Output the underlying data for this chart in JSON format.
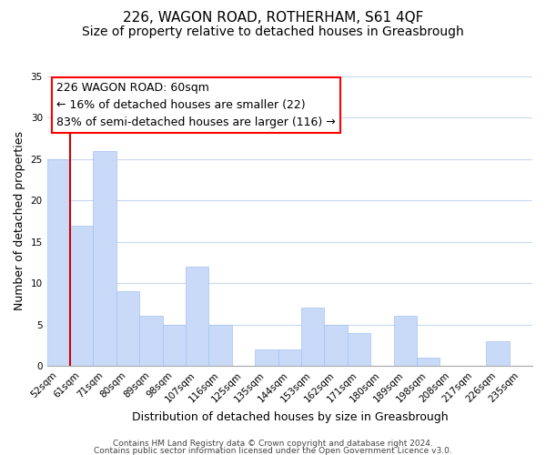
{
  "title": "226, WAGON ROAD, ROTHERHAM, S61 4QF",
  "subtitle": "Size of property relative to detached houses in Greasbrough",
  "xlabel": "Distribution of detached houses by size in Greasbrough",
  "ylabel": "Number of detached properties",
  "bar_labels": [
    "52sqm",
    "61sqm",
    "71sqm",
    "80sqm",
    "89sqm",
    "98sqm",
    "107sqm",
    "116sqm",
    "125sqm",
    "135sqm",
    "144sqm",
    "153sqm",
    "162sqm",
    "171sqm",
    "180sqm",
    "189sqm",
    "198sqm",
    "208sqm",
    "217sqm",
    "226sqm",
    "235sqm"
  ],
  "bar_values": [
    25,
    17,
    26,
    9,
    6,
    5,
    12,
    5,
    0,
    2,
    2,
    7,
    5,
    4,
    0,
    6,
    1,
    0,
    0,
    3,
    0
  ],
  "bar_color": "#c9daf8",
  "bar_edge_color": "#a4c2f4",
  "highlight_color": "#cc0000",
  "red_line_x": 0.5,
  "ylim": [
    0,
    35
  ],
  "yticks": [
    0,
    5,
    10,
    15,
    20,
    25,
    30,
    35
  ],
  "annotation_line1": "226 WAGON ROAD: 60sqm",
  "annotation_line2": "← 16% of detached houses are smaller (22)",
  "annotation_line3": "83% of semi-detached houses are larger (116) →",
  "footer_line1": "Contains HM Land Registry data © Crown copyright and database right 2024.",
  "footer_line2": "Contains public sector information licensed under the Open Government Licence v3.0.",
  "background_color": "#ffffff",
  "grid_color": "#c8d8f0",
  "title_fontsize": 11,
  "subtitle_fontsize": 10,
  "axis_label_fontsize": 9,
  "tick_fontsize": 7.5,
  "annotation_fontsize": 9,
  "footer_fontsize": 6.5
}
